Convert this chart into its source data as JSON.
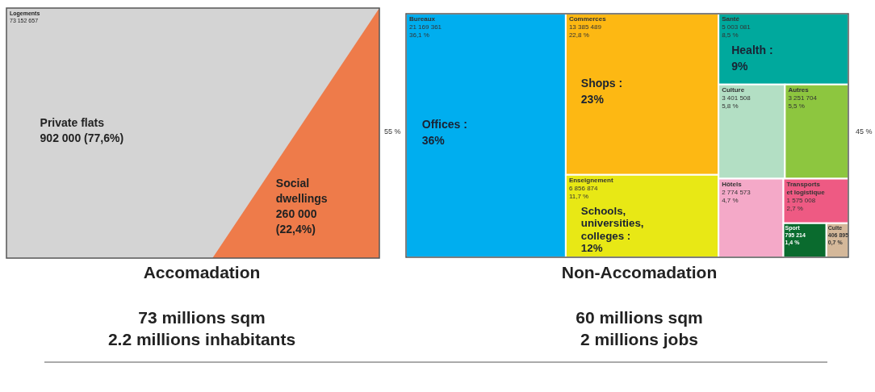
{
  "chart_data": [
    {
      "type": "other",
      "title": "Logements",
      "subtitle": "73 152 657",
      "categories": [
        "Private flats",
        "Social\ndwellings"
      ],
      "values": [
        902000,
        260000
      ],
      "value_labels": [
        "902 000 (77,6%)",
        "260 000\n(22,4%)"
      ],
      "colors": [
        "#d4d4d4",
        "#ee7b4a"
      ],
      "xlabel": "Accomadation",
      "annotations": [
        "55 %",
        "73 millions sqm",
        "2.2 millions inhabitants"
      ]
    },
    {
      "type": "other",
      "categories": [
        "Bureaux",
        "Commerces",
        "Enseignement",
        "Santé",
        "Culture",
        "Autres",
        "Hôtels",
        "Transports\net logistique",
        "Sport",
        "Culte"
      ],
      "series": [
        {
          "values": [
            21169361,
            13385489,
            6856874,
            5003081,
            3401508,
            3251704,
            2774573,
            1575008,
            795214,
            406895
          ],
          "value_labels": [
            "21 169 361\n36,1 %",
            "13 385 489\n22,8 %",
            "6 856 874\n11,7 %",
            "5 003 081\n8,5 %",
            "3 401 508\n5,8 %",
            "3 251 704\n5,5 %",
            "2 774 573\n4,7 %",
            "1 575 008\n2,7 %",
            "795 214\n1,4 %",
            "406 895\n0,7 %"
          ],
          "colors": [
            "#00aeef",
            "#fdb813",
            "#e8e815",
            "#00a99d",
            "#b3dfc4",
            "#8dc63f",
            "#f4a9c8",
            "#ee5a83",
            "#0a6b2e",
            "#d4b89a"
          ]
        }
      ],
      "xlabel": "Non-Accomadation",
      "annotations": [
        "45 %",
        "60 millions sqm",
        "2 millions jobs",
        {
          "text": "Offices :\n36%",
          "x": "Bureaux"
        },
        {
          "text": "Shops :\n23%",
          "x": "Commerces"
        },
        {
          "text": "Schools,\nuniversities,\ncolleges :\n12%",
          "x": "Enseignement"
        },
        {
          "text": "Health :\n9%",
          "x": "Santé"
        }
      ]
    }
  ]
}
